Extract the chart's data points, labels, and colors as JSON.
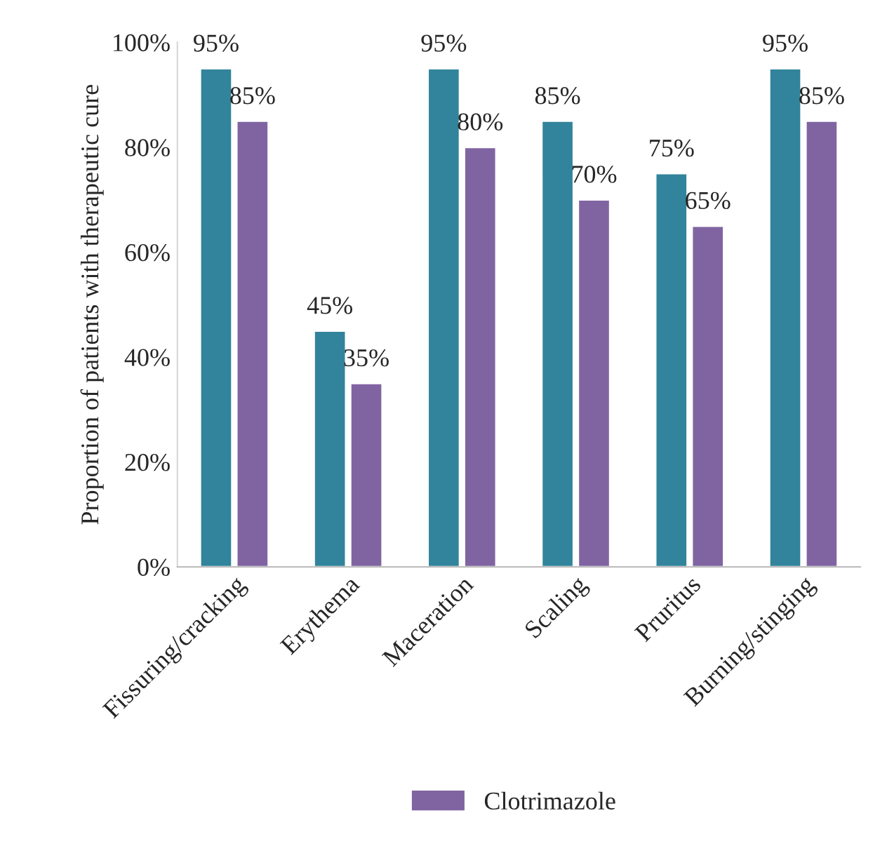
{
  "chart_data": {
    "type": "bar",
    "ylabel": "Proportion of patients with therapeutic cure",
    "categories": [
      "Fissuring/cracking",
      "Erythema",
      "Maceration",
      "Scaling",
      "Pruritus",
      "Burning/stinging"
    ],
    "series": [
      {
        "color": "#31849b",
        "values": [
          95,
          45,
          95,
          85,
          75,
          95
        ],
        "value_labels": [
          "95%",
          "45%",
          "95%",
          "85%",
          "75%",
          "95%"
        ]
      },
      {
        "name": "Clotrimazole",
        "color": "#8064a2",
        "values": [
          85,
          35,
          80,
          70,
          65,
          85
        ],
        "value_labels": [
          "85%",
          "35%",
          "80%",
          "70%",
          "65%",
          "85%"
        ]
      }
    ],
    "ylim": [
      0,
      100
    ],
    "yticks": [
      {
        "value": 0,
        "label": "0%"
      },
      {
        "value": 20,
        "label": "20%"
      },
      {
        "value": 40,
        "label": "40%"
      },
      {
        "value": 60,
        "label": "60%"
      },
      {
        "value": 80,
        "label": "80%"
      },
      {
        "value": 100,
        "label": "100%"
      }
    ],
    "grid": false,
    "legend": "bottom"
  }
}
